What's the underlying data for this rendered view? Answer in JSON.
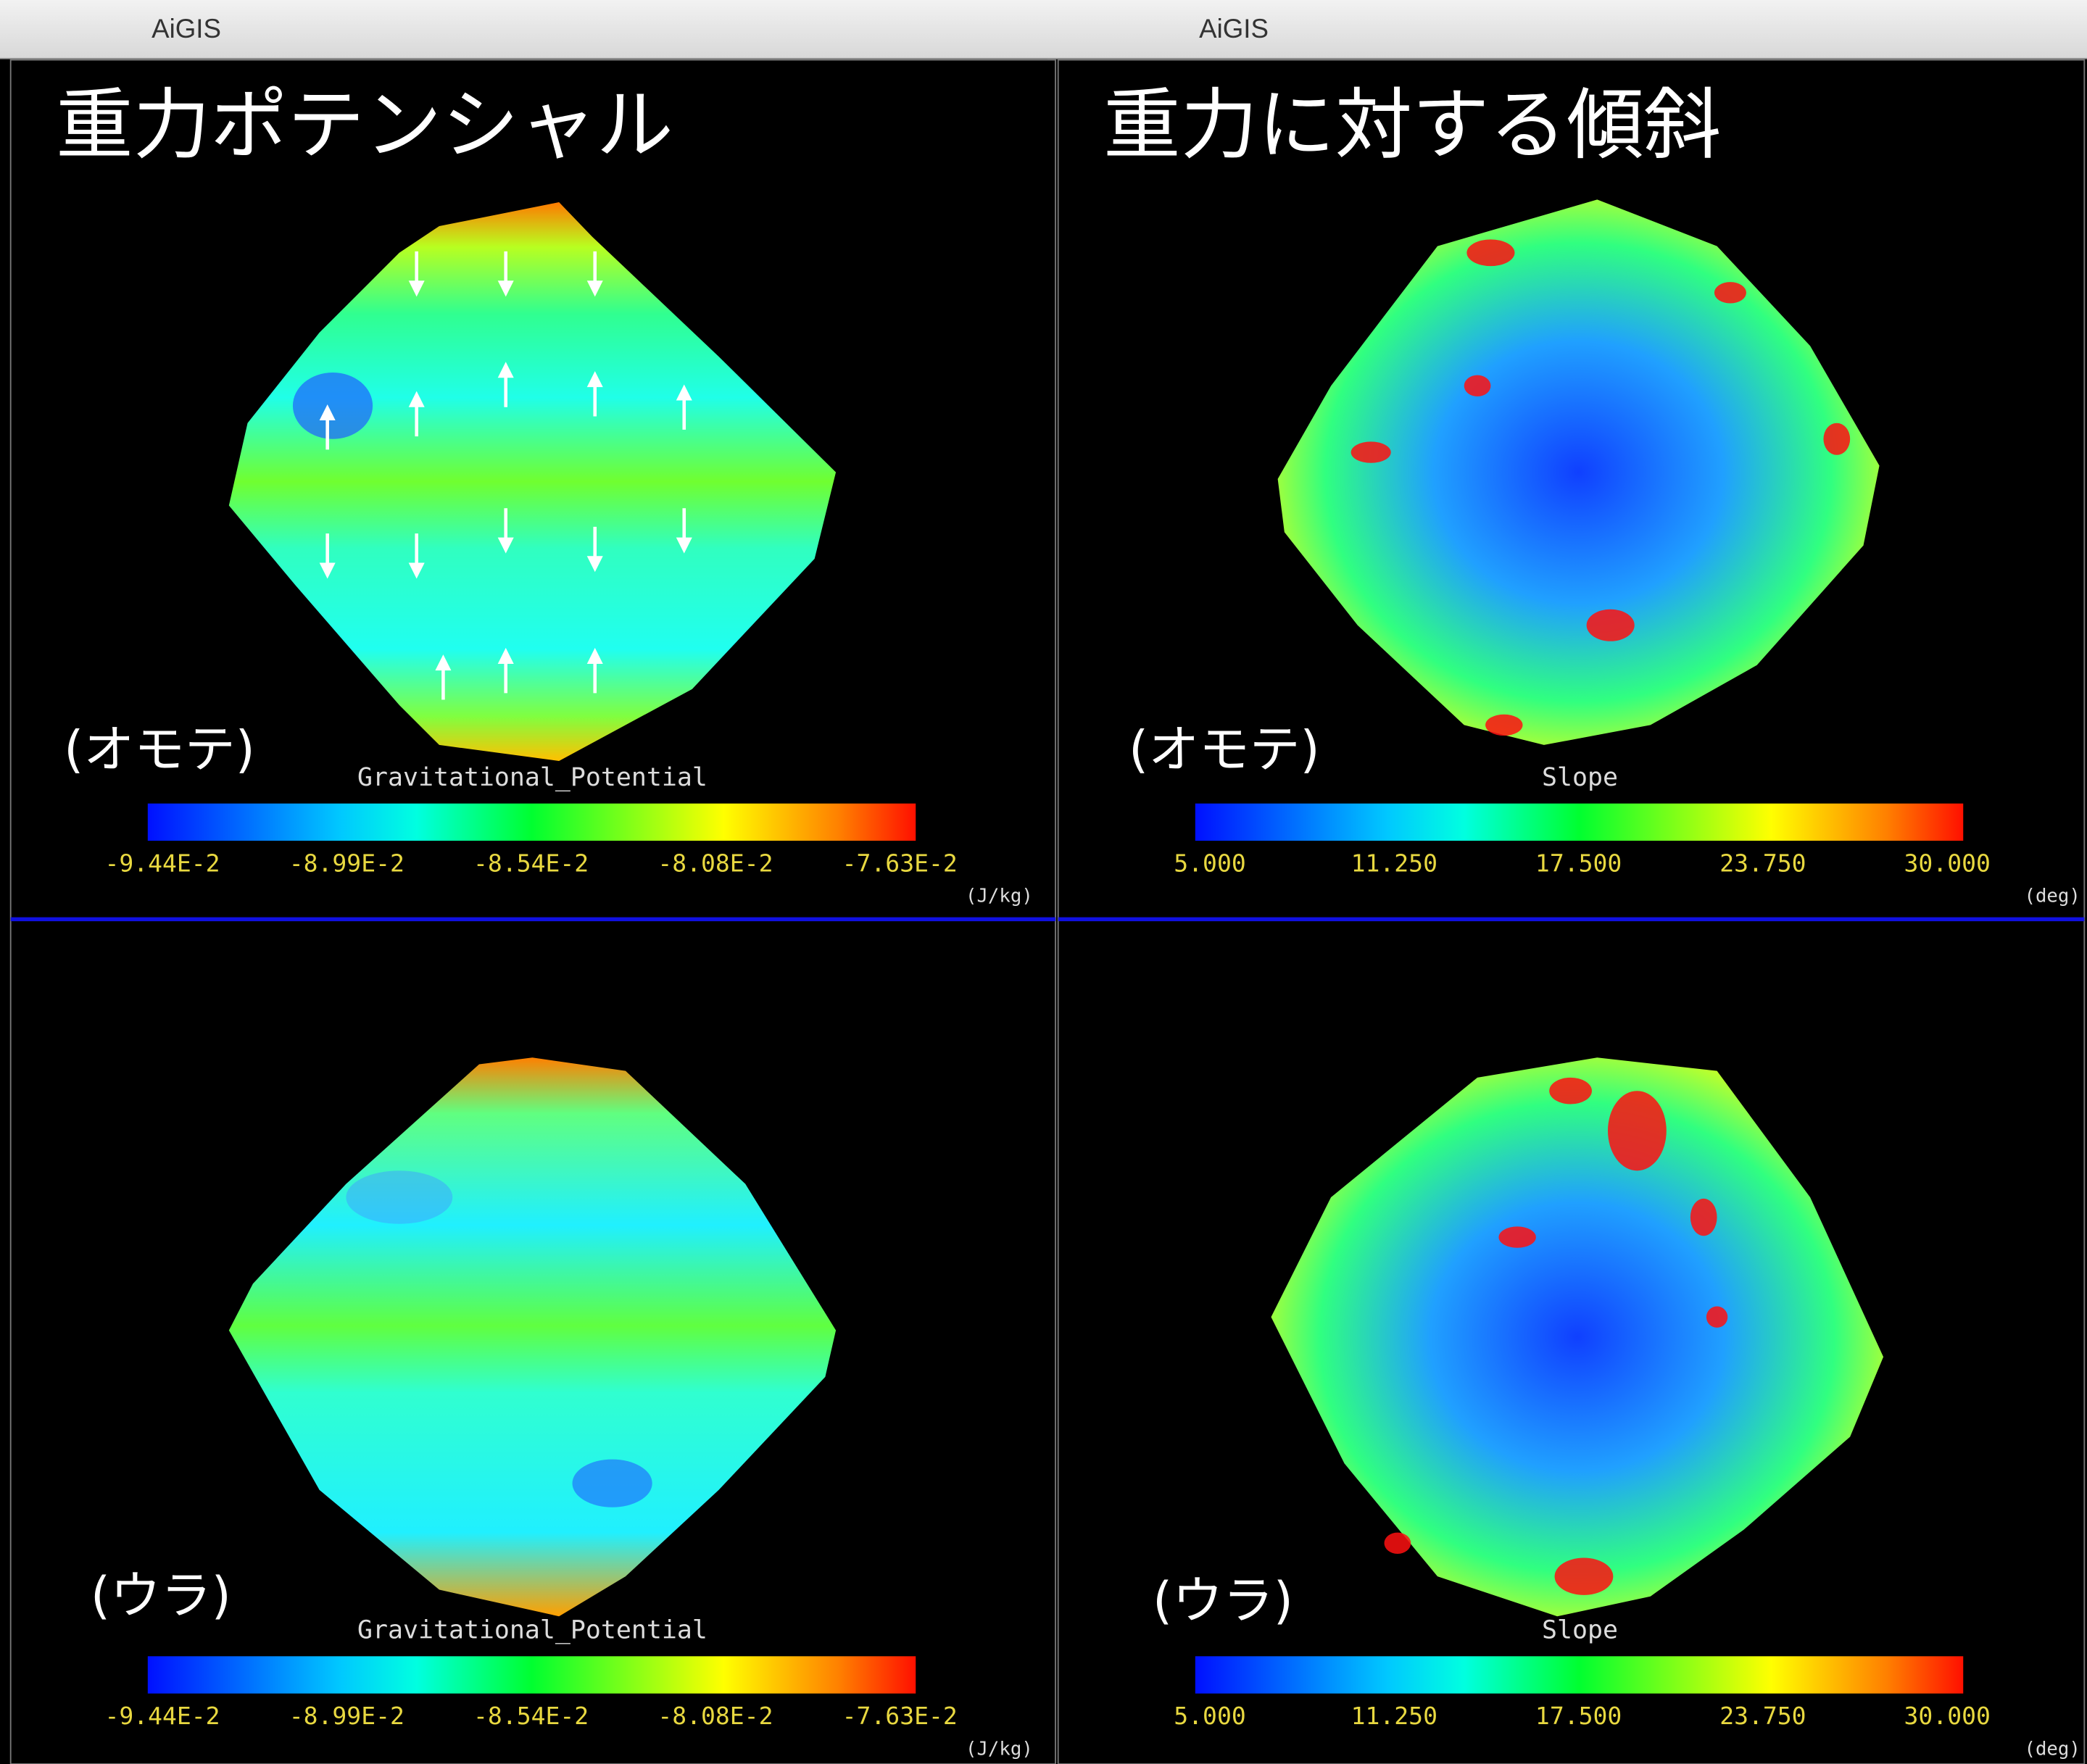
{
  "windows": [
    {
      "title": "AiGIS",
      "heading": "重力ポテンシャル",
      "panels": [
        {
          "view_label": "(オモテ)",
          "colorbar": {
            "title": "Gravitational_Potential",
            "ticks": [
              "-9.44E-2",
              "-8.99E-2",
              "-8.54E-2",
              "-8.08E-2",
              "-7.63E-2"
            ],
            "unit": "(J/kg)"
          }
        },
        {
          "view_label": "(ウラ)",
          "colorbar": {
            "title": "Gravitational_Potential",
            "ticks": [
              "-9.44E-2",
              "-8.99E-2",
              "-8.54E-2",
              "-8.08E-2",
              "-7.63E-2"
            ],
            "unit": "(J/kg)"
          }
        }
      ]
    },
    {
      "title": "AiGIS",
      "heading": "重力に対する傾斜",
      "panels": [
        {
          "view_label": "(オモテ)",
          "colorbar": {
            "title": "Slope",
            "ticks": [
              "5.000",
              "11.250",
              "17.500",
              "23.750",
              "30.000"
            ],
            "unit": "(deg)"
          }
        },
        {
          "view_label": "(ウラ)",
          "colorbar": {
            "title": "Slope",
            "ticks": [
              "5.000",
              "11.250",
              "17.500",
              "23.750",
              "30.000"
            ],
            "unit": "(deg)"
          }
        }
      ]
    }
  ]
}
